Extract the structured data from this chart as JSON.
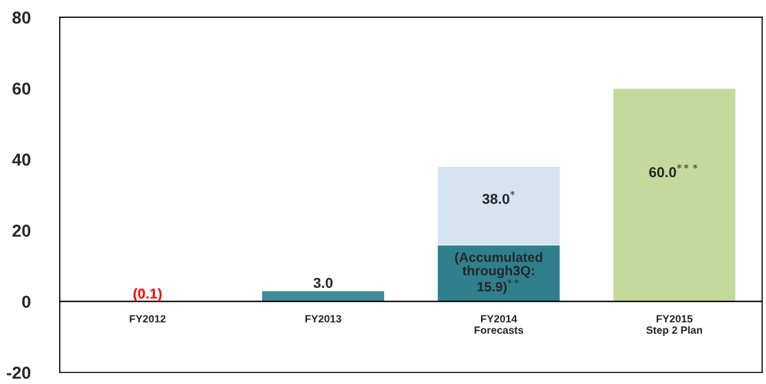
{
  "chart_data": {
    "type": "bar",
    "categories": [
      "FY2012",
      "FY2013",
      "FY2014\nForecasts",
      "FY2015\nStep 2 Plan"
    ],
    "series": [
      {
        "colors": [
          "#3a90a2",
          "#3f8b9a",
          "#d6e4f2",
          "#c5d99c"
        ],
        "values": [
          -0.1,
          3.0,
          38.0,
          60.0
        ],
        "value_labels": [
          "(0.1)",
          "3.0",
          "38.0$^{*}$",
          "60.0$^{***}$"
        ]
      },
      {
        "color": "#2f7f8d",
        "values": [
          null,
          null,
          15.9,
          null
        ],
        "value_labels": [
          null,
          null,
          "(Accumulated\nthrough3Q:\n15.9)$^{**}$",
          null
        ]
      }
    ],
    "ylim": [
      -20,
      80
    ],
    "yticks": [
      -20,
      0,
      20,
      40,
      60,
      80
    ],
    "grid": false,
    "legend": false
  }
}
